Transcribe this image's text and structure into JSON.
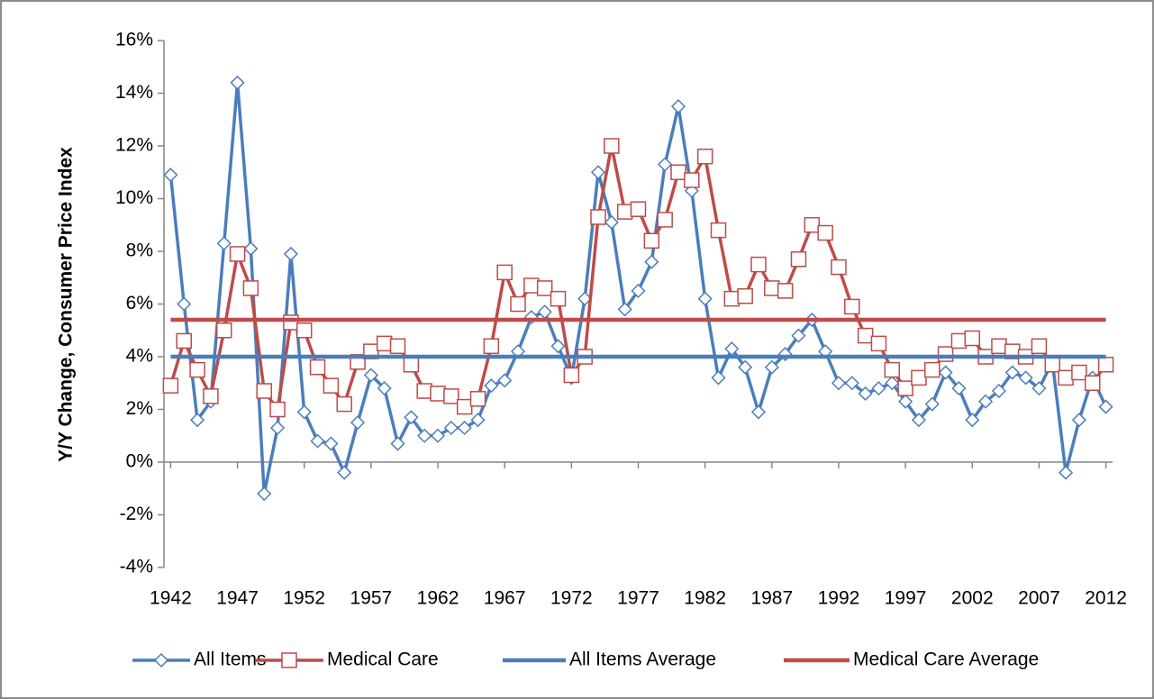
{
  "chart_data": {
    "type": "line",
    "ylabel": "Y/Y Change, Consumer Price Index",
    "x": [
      1942,
      1943,
      1944,
      1945,
      1946,
      1947,
      1948,
      1949,
      1950,
      1951,
      1952,
      1953,
      1954,
      1955,
      1956,
      1957,
      1958,
      1959,
      1960,
      1961,
      1962,
      1963,
      1964,
      1965,
      1966,
      1967,
      1968,
      1969,
      1970,
      1971,
      1972,
      1973,
      1974,
      1975,
      1976,
      1977,
      1978,
      1979,
      1980,
      1981,
      1982,
      1983,
      1984,
      1985,
      1986,
      1987,
      1988,
      1989,
      1990,
      1991,
      1992,
      1993,
      1994,
      1995,
      1996,
      1997,
      1998,
      1999,
      2000,
      2001,
      2002,
      2003,
      2004,
      2005,
      2006,
      2007,
      2008,
      2009,
      2010,
      2011,
      2012
    ],
    "xlim": [
      1941.5,
      2012.5
    ],
    "xticks": [
      1942,
      1947,
      1952,
      1957,
      1962,
      1967,
      1972,
      1977,
      1982,
      1987,
      1992,
      1997,
      2002,
      2007,
      2012
    ],
    "ylim": [
      -4,
      16
    ],
    "yticks": [
      {
        "value": -4,
        "label": "-4%"
      },
      {
        "value": -2,
        "label": "-2%"
      },
      {
        "value": 0,
        "label": "0%"
      },
      {
        "value": 2,
        "label": "2%"
      },
      {
        "value": 4,
        "label": "4%"
      },
      {
        "value": 6,
        "label": "6%"
      },
      {
        "value": 8,
        "label": "8%"
      },
      {
        "value": 10,
        "label": "10%"
      },
      {
        "value": 12,
        "label": "12%"
      },
      {
        "value": 14,
        "label": "14%"
      },
      {
        "value": 16,
        "label": "16%"
      }
    ],
    "grid": false,
    "legend": "bottom",
    "series": [
      {
        "name": "All Items",
        "color": "#4a7ebb",
        "marker": "diamond",
        "values": [
          10.9,
          6.0,
          1.6,
          2.3,
          8.3,
          14.4,
          8.1,
          -1.2,
          1.3,
          7.9,
          1.9,
          0.8,
          0.7,
          -0.4,
          1.5,
          3.3,
          2.8,
          0.7,
          1.7,
          1.0,
          1.0,
          1.3,
          1.3,
          1.6,
          2.9,
          3.1,
          4.2,
          5.5,
          5.7,
          4.4,
          3.2,
          6.2,
          11.0,
          9.1,
          5.8,
          6.5,
          7.6,
          11.3,
          13.5,
          10.3,
          6.2,
          3.2,
          4.3,
          3.6,
          1.9,
          3.6,
          4.1,
          4.8,
          5.4,
          4.2,
          3.0,
          3.0,
          2.6,
          2.8,
          3.0,
          2.3,
          1.6,
          2.2,
          3.4,
          2.8,
          1.6,
          2.3,
          2.7,
          3.4,
          3.2,
          2.8,
          3.8,
          -0.4,
          1.6,
          3.2,
          2.1
        ]
      },
      {
        "name": "Medical Care",
        "color": "#be4b48",
        "marker": "square",
        "values": [
          2.9,
          4.6,
          3.5,
          2.5,
          5.0,
          7.9,
          6.6,
          2.7,
          2.0,
          5.3,
          5.0,
          3.6,
          2.9,
          2.2,
          3.8,
          4.2,
          4.5,
          4.4,
          3.7,
          2.7,
          2.6,
          2.5,
          2.1,
          2.4,
          4.4,
          7.2,
          6.0,
          6.7,
          6.6,
          6.2,
          3.3,
          4.0,
          9.3,
          12.0,
          9.5,
          9.6,
          8.4,
          9.2,
          11.0,
          10.7,
          11.6,
          8.8,
          6.2,
          6.3,
          7.5,
          6.6,
          6.5,
          7.7,
          9.0,
          8.7,
          7.4,
          5.9,
          4.8,
          4.5,
          3.5,
          2.8,
          3.2,
          3.5,
          4.1,
          4.6,
          4.7,
          4.0,
          4.4,
          4.2,
          4.0,
          4.4,
          3.7,
          3.2,
          3.4,
          3.0,
          3.7
        ]
      },
      {
        "name": "All Items Average",
        "color": "#4a7ebb",
        "value": 4.0
      },
      {
        "name": "Medical Care Average",
        "color": "#be4b48",
        "value": 5.4
      }
    ]
  }
}
